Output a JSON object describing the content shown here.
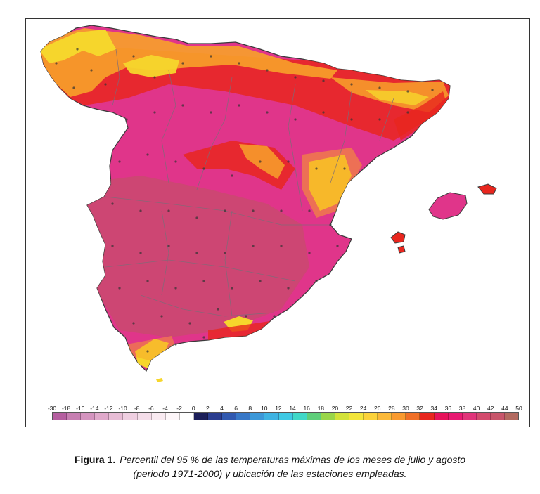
{
  "figure": {
    "caption_label": "Figura 1.",
    "caption_line1": "Percentil del 95 % de las temperaturas máximas de los meses de julio y agosto",
    "caption_line2": "(periodo 1971-2000) y ubicación de las estaciones empleadas."
  },
  "legend": {
    "ticks": [
      "-30",
      "-18",
      "-16",
      "-14",
      "-12",
      "-10",
      "-8",
      "-6",
      "-4",
      "-2",
      "0",
      "2",
      "4",
      "6",
      "8",
      "10",
      "12",
      "14",
      "16",
      "18",
      "20",
      "22",
      "24",
      "26",
      "28",
      "30",
      "32",
      "34",
      "36",
      "38",
      "40",
      "42",
      "44",
      "50"
    ],
    "colors": [
      "#b55fa0",
      "#c77fb2",
      "#d494bf",
      "#e0a9cb",
      "#e8bdd6",
      "#efcfe1",
      "#f4dde9",
      "#f9eaf1",
      "#fdf6f9",
      "#ffffff",
      "#1c1f5a",
      "#2a3d8f",
      "#3159b0",
      "#3878c7",
      "#3d98d8",
      "#3fb3e2",
      "#3fc9e4",
      "#40d8c8",
      "#5fce7a",
      "#9ad64a",
      "#d3e23a",
      "#f3e53a",
      "#fbd23a",
      "#fbb93a",
      "#f99a2f",
      "#f06f27",
      "#e8261e",
      "#e6125a",
      "#e81a72",
      "#e0357a",
      "#d34b6d",
      "#c8566b",
      "#b36a60"
    ]
  },
  "map": {
    "colors": {
      "base": "#d8437e",
      "inland_hot": "#c9496f",
      "magenta": "#e0358a",
      "red": "#e8261e",
      "orange": "#f7a12a",
      "yellow": "#f6d62c",
      "border": "#3a3a3a",
      "region_line": "#7b6c78"
    },
    "station_symbol": "station-dot-icon"
  }
}
